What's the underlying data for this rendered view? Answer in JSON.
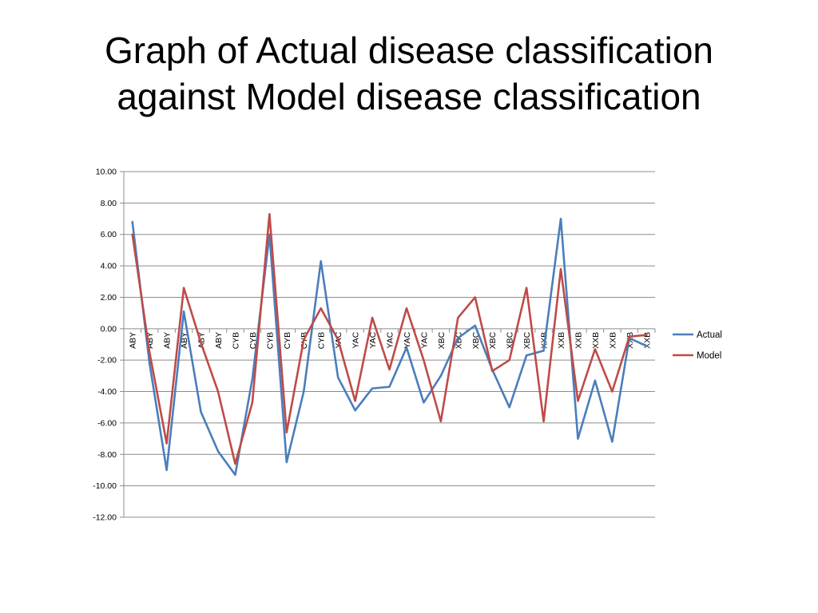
{
  "title": {
    "line1": "Graph of Actual disease classification",
    "line2": "against Model disease classification"
  },
  "chart_data": {
    "type": "line",
    "title": "Graph of Actual disease classification against Model disease classification",
    "xlabel": "",
    "ylabel": "",
    "ylim": [
      -12,
      10
    ],
    "yticks": [
      10,
      8,
      6,
      4,
      2,
      0,
      -2,
      -4,
      -6,
      -8,
      -10,
      -12
    ],
    "ytick_labels": [
      "10.00",
      "8.00",
      "6.00",
      "4.00",
      "2.00",
      "0.00",
      "-2.00",
      "-4.00",
      "-6.00",
      "-8.00",
      "-10.00",
      "-12.00"
    ],
    "grid": true,
    "legend_position": "right",
    "categories": [
      "ABY",
      "ABY",
      "ABY",
      "ABY",
      "ABY",
      "ABY",
      "CYB",
      "CYB",
      "CYB",
      "CYB",
      "CYB",
      "CYB",
      "YAC",
      "YAC",
      "YAC",
      "YAC",
      "YAC",
      "YAC",
      "XBC",
      "XBC",
      "XBC",
      "XBC",
      "XBC",
      "XBC",
      "XXB",
      "XXB",
      "XXB",
      "XXB",
      "XXB",
      "XXB",
      "XXB"
    ],
    "series": [
      {
        "name": "Actual",
        "color": "#4a7ebb",
        "values": [
          6.8,
          -2.2,
          -9.0,
          1.1,
          -5.3,
          -7.8,
          -9.3,
          -3.2,
          6.0,
          -8.5,
          -4.0,
          4.3,
          -3.1,
          -5.2,
          -3.8,
          -3.7,
          -1.2,
          -4.7,
          -3.0,
          -0.6,
          0.2,
          -2.6,
          -5.0,
          -1.7,
          -1.4,
          7.0,
          -7.0,
          -3.3,
          -7.2,
          -0.6,
          -1.1
        ]
      },
      {
        "name": "Model",
        "color": "#be4b48",
        "values": [
          6.0,
          -1.5,
          -7.3,
          2.6,
          -0.9,
          -4.0,
          -8.6,
          -4.7,
          7.3,
          -6.6,
          -0.7,
          1.3,
          -0.7,
          -4.6,
          0.7,
          -2.6,
          1.3,
          -2.0,
          -5.9,
          0.7,
          2.0,
          -2.7,
          -2.0,
          2.6,
          -5.9,
          3.8,
          -4.6,
          -1.3,
          -4.0,
          -0.5,
          -0.4
        ]
      }
    ]
  }
}
